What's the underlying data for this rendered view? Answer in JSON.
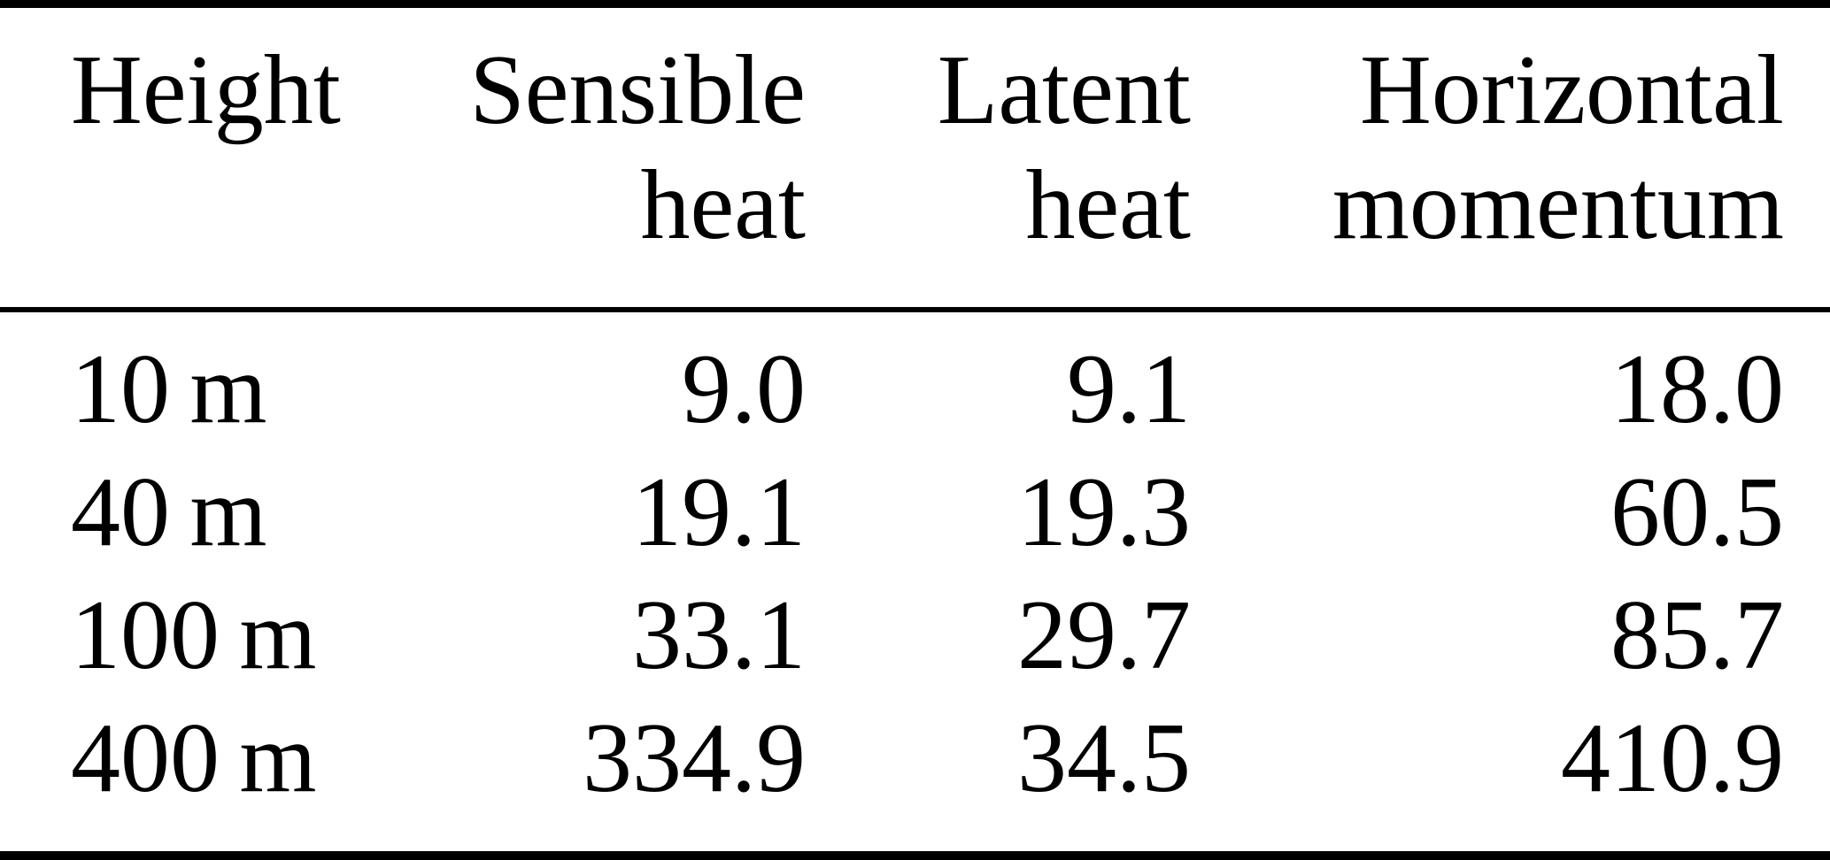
{
  "meta": {
    "description": "Academic-paper style data table with top, middle and bottom rules",
    "colors": {
      "background": "#ffffff",
      "text": "#000000",
      "rule": "#000000"
    }
  },
  "table": {
    "columns": [
      {
        "line1": "Height",
        "line2": ""
      },
      {
        "line1": "Sensible",
        "line2": "heat"
      },
      {
        "line1": "Latent",
        "line2": "heat"
      },
      {
        "line1": "Horizontal",
        "line2": "momentum"
      }
    ],
    "rows": [
      {
        "height": "10 m",
        "sensible": "9.0",
        "latent": "9.1",
        "momentum": "18.0"
      },
      {
        "height": "40 m",
        "sensible": "19.1",
        "latent": "19.3",
        "momentum": "60.5"
      },
      {
        "height": "100 m",
        "sensible": "33.1",
        "latent": "29.7",
        "momentum": "85.7"
      },
      {
        "height": "400 m",
        "sensible": "334.9",
        "latent": "34.5",
        "momentum": "410.9"
      }
    ]
  },
  "chart_data": {
    "type": "table",
    "title": "",
    "columns": [
      "Height",
      "Sensible heat",
      "Latent heat",
      "Horizontal momentum"
    ],
    "categories": [
      "10 m",
      "40 m",
      "100 m",
      "400 m"
    ],
    "series": [
      {
        "name": "Sensible heat",
        "values": [
          9.0,
          19.1,
          33.1,
          334.9
        ]
      },
      {
        "name": "Latent heat",
        "values": [
          9.1,
          19.3,
          29.7,
          34.5
        ]
      },
      {
        "name": "Horizontal momentum",
        "values": [
          18.0,
          60.5,
          85.7,
          410.9
        ]
      }
    ],
    "layout_hints": {
      "column_1_alignment": "left",
      "numeric_column_alignment": "right",
      "rules": [
        "top-heavy",
        "mid-light-below-header",
        "bottom-heavy"
      ]
    }
  }
}
